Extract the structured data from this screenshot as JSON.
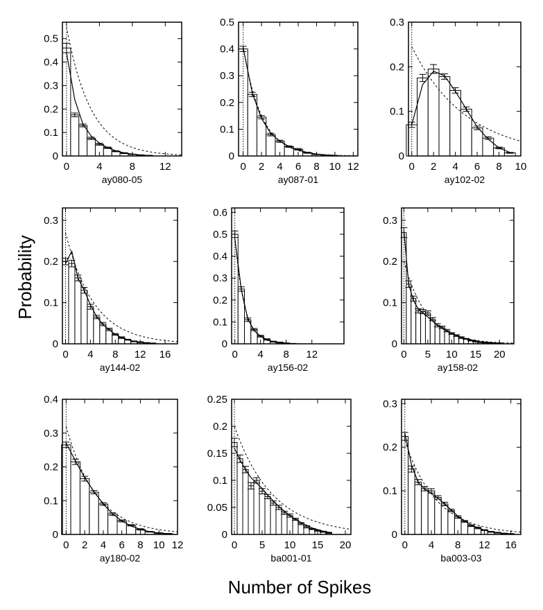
{
  "figure": {
    "ylabel": "Probability",
    "xlabel": "Number of Spikes"
  },
  "chart_data": [
    {
      "type": "bar",
      "title": "ay080-05",
      "xlim": [
        -0.5,
        14
      ],
      "ylim": [
        0,
        0.57
      ],
      "xticks": [
        0,
        4,
        8,
        12
      ],
      "yticks": [
        0,
        0.1,
        0.2,
        0.3,
        0.4,
        0.5
      ],
      "x": [
        0,
        1,
        2,
        3,
        4,
        5,
        6,
        7,
        8,
        9,
        10
      ],
      "values": [
        0.46,
        0.175,
        0.13,
        0.075,
        0.05,
        0.035,
        0.02,
        0.012,
        0.007,
        0.004,
        0.002
      ],
      "errors": [
        0.02,
        0.008,
        0.006,
        0.005,
        0.004,
        0.003,
        0.002,
        0.002,
        0.001,
        0.001,
        0.001
      ],
      "fit": [
        0.44,
        0.24,
        0.135,
        0.085,
        0.055,
        0.035,
        0.022,
        0.013,
        0.008,
        0.004,
        0.002
      ],
      "exp_start": 0.55,
      "exp_decay": 0.34
    },
    {
      "type": "bar",
      "title": "ay087-01",
      "xlim": [
        -0.5,
        12.5
      ],
      "ylim": [
        0,
        0.5
      ],
      "xticks": [
        0,
        2,
        4,
        6,
        8,
        10,
        12
      ],
      "yticks": [
        0,
        0.1,
        0.2,
        0.3,
        0.4,
        0.5
      ],
      "x": [
        0,
        1,
        2,
        3,
        4,
        5,
        6,
        7,
        8,
        9,
        10
      ],
      "values": [
        0.4,
        0.23,
        0.145,
        0.08,
        0.055,
        0.035,
        0.025,
        0.012,
        0.006,
        0.003,
        0.001
      ],
      "errors": [
        0.01,
        0.008,
        0.006,
        0.005,
        0.004,
        0.003,
        0.003,
        0.002,
        0.001,
        0.001,
        0.001
      ],
      "fit": [
        0.405,
        0.235,
        0.14,
        0.085,
        0.055,
        0.035,
        0.022,
        0.013,
        0.007,
        0.004,
        0.002
      ],
      "exp_start": 0.41,
      "exp_decay": 0.5
    },
    {
      "type": "bar",
      "title": "ay102-02",
      "xlim": [
        -0.3,
        10
      ],
      "ylim": [
        0,
        0.3
      ],
      "xticks": [
        0,
        2,
        4,
        6,
        8,
        10
      ],
      "yticks": [
        0,
        0.1,
        0.2,
        0.3
      ],
      "x": [
        0,
        1,
        2,
        3,
        4,
        5,
        6,
        7,
        8,
        9
      ],
      "values": [
        0.07,
        0.175,
        0.195,
        0.178,
        0.147,
        0.105,
        0.063,
        0.04,
        0.018,
        0.007
      ],
      "errors": [
        0.006,
        0.008,
        0.01,
        0.006,
        0.006,
        0.005,
        0.004,
        0.003,
        0.002,
        0.001
      ],
      "fit": [
        0.07,
        0.16,
        0.19,
        0.18,
        0.145,
        0.105,
        0.065,
        0.038,
        0.018,
        0.008
      ],
      "exp_start": 0.245,
      "exp_decay": 0.2
    },
    {
      "type": "bar",
      "title": "ay144-02",
      "xlim": [
        -0.5,
        18
      ],
      "ylim": [
        0,
        0.33
      ],
      "xticks": [
        0,
        4,
        8,
        12,
        16
      ],
      "yticks": [
        0,
        0.1,
        0.2,
        0.3
      ],
      "x": [
        0,
        1,
        2,
        3,
        4,
        5,
        6,
        7,
        8,
        9,
        10,
        11,
        12,
        13,
        14
      ],
      "values": [
        0.2,
        0.195,
        0.16,
        0.13,
        0.09,
        0.065,
        0.048,
        0.035,
        0.023,
        0.015,
        0.01,
        0.006,
        0.004,
        0.002,
        0.001
      ],
      "errors": [
        0.008,
        0.008,
        0.007,
        0.007,
        0.006,
        0.004,
        0.004,
        0.003,
        0.002,
        0.002,
        0.001,
        0.001,
        0.001,
        0.001,
        0.001
      ],
      "fit": [
        0.195,
        0.225,
        0.16,
        0.13,
        0.095,
        0.066,
        0.047,
        0.034,
        0.023,
        0.015,
        0.01,
        0.006,
        0.004,
        0.002,
        0.001
      ],
      "exp_start": 0.27,
      "exp_decay": 0.22
    },
    {
      "type": "bar",
      "title": "ay156-02",
      "xlim": [
        -0.5,
        17
      ],
      "ylim": [
        0,
        0.62
      ],
      "xticks": [
        0,
        4,
        8,
        12
      ],
      "yticks": [
        0,
        0.1,
        0.2,
        0.3,
        0.4,
        0.5,
        0.6
      ],
      "x": [
        0,
        1,
        2,
        3,
        4,
        5,
        6,
        7,
        8,
        9
      ],
      "values": [
        0.5,
        0.25,
        0.11,
        0.065,
        0.035,
        0.02,
        0.01,
        0.006,
        0.003,
        0.001
      ],
      "errors": [
        0.015,
        0.01,
        0.008,
        0.005,
        0.004,
        0.003,
        0.002,
        0.002,
        0.001,
        0.001
      ],
      "fit": [
        0.48,
        0.25,
        0.115,
        0.06,
        0.035,
        0.018,
        0.01,
        0.005,
        0.003,
        0.001
      ],
      "exp_start": 0.49,
      "exp_decay": 0.68
    },
    {
      "type": "bar",
      "title": "ay158-02",
      "xlim": [
        -0.5,
        23
      ],
      "ylim": [
        0,
        0.33
      ],
      "xticks": [
        0,
        5,
        10,
        15,
        20
      ],
      "yticks": [
        0,
        0.1,
        0.2,
        0.3
      ],
      "x": [
        0,
        1,
        2,
        3,
        4,
        5,
        6,
        7,
        8,
        9,
        10,
        11,
        12,
        13,
        14,
        15,
        16,
        17,
        18,
        19,
        20
      ],
      "values": [
        0.27,
        0.145,
        0.11,
        0.08,
        0.078,
        0.075,
        0.06,
        0.045,
        0.04,
        0.032,
        0.025,
        0.02,
        0.015,
        0.012,
        0.008,
        0.006,
        0.004,
        0.003,
        0.002,
        0.001,
        0.001
      ],
      "errors": [
        0.012,
        0.008,
        0.006,
        0.005,
        0.005,
        0.005,
        0.004,
        0.004,
        0.003,
        0.003,
        0.002,
        0.002,
        0.002,
        0.001,
        0.001,
        0.001,
        0.001,
        0.001,
        0.001,
        0.001,
        0.001
      ],
      "fit": [
        0.275,
        0.145,
        0.105,
        0.085,
        0.075,
        0.065,
        0.055,
        0.046,
        0.038,
        0.031,
        0.025,
        0.02,
        0.016,
        0.012,
        0.009,
        0.007,
        0.005,
        0.004,
        0.003,
        0.002,
        0.001
      ],
      "exp_start": 0.2,
      "exp_decay": 0.21
    },
    {
      "type": "bar",
      "title": "ay180-02",
      "xlim": [
        -0.4,
        12
      ],
      "ylim": [
        0,
        0.4
      ],
      "xticks": [
        0,
        2,
        4,
        6,
        8,
        10,
        12
      ],
      "yticks": [
        0,
        0.1,
        0.2,
        0.3,
        0.4
      ],
      "x": [
        0,
        1,
        2,
        3,
        4,
        5,
        6,
        7,
        8,
        9,
        10,
        11
      ],
      "values": [
        0.265,
        0.215,
        0.165,
        0.125,
        0.09,
        0.06,
        0.04,
        0.027,
        0.015,
        0.008,
        0.004,
        0.002
      ],
      "errors": [
        0.008,
        0.008,
        0.007,
        0.005,
        0.004,
        0.004,
        0.003,
        0.002,
        0.002,
        0.001,
        0.001,
        0.001
      ],
      "fit": [
        0.27,
        0.218,
        0.168,
        0.127,
        0.09,
        0.061,
        0.04,
        0.025,
        0.015,
        0.008,
        0.004,
        0.002
      ],
      "exp_start": 0.32,
      "exp_decay": 0.31
    },
    {
      "type": "bar",
      "title": "ba001-01",
      "xlim": [
        -0.5,
        21
      ],
      "ylim": [
        0,
        0.25
      ],
      "xticks": [
        0,
        5,
        10,
        15,
        20
      ],
      "yticks": [
        0,
        0.05,
        0.1,
        0.15,
        0.2,
        0.25
      ],
      "x": [
        0,
        1,
        2,
        3,
        4,
        5,
        6,
        7,
        8,
        9,
        10,
        11,
        12,
        13,
        14,
        15,
        16,
        17
      ],
      "values": [
        0.17,
        0.14,
        0.12,
        0.09,
        0.1,
        0.08,
        0.07,
        0.058,
        0.05,
        0.04,
        0.035,
        0.028,
        0.02,
        0.014,
        0.01,
        0.007,
        0.005,
        0.003
      ],
      "errors": [
        0.008,
        0.007,
        0.006,
        0.006,
        0.005,
        0.005,
        0.004,
        0.004,
        0.004,
        0.003,
        0.003,
        0.002,
        0.002,
        0.002,
        0.001,
        0.001,
        0.001,
        0.001
      ],
      "fit": [
        0.16,
        0.138,
        0.12,
        0.105,
        0.095,
        0.085,
        0.073,
        0.062,
        0.052,
        0.043,
        0.035,
        0.028,
        0.022,
        0.017,
        0.012,
        0.009,
        0.006,
        0.004
      ],
      "exp_start": 0.2,
      "exp_decay": 0.145
    },
    {
      "type": "bar",
      "title": "ba003-03",
      "xlim": [
        -0.5,
        17.5
      ],
      "ylim": [
        0,
        0.31
      ],
      "xticks": [
        0,
        4,
        8,
        12,
        16
      ],
      "yticks": [
        0,
        0.1,
        0.2,
        0.3
      ],
      "x": [
        0,
        1,
        2,
        3,
        4,
        5,
        6,
        7,
        8,
        9,
        10,
        11,
        12,
        13,
        14,
        15,
        16
      ],
      "values": [
        0.225,
        0.15,
        0.12,
        0.105,
        0.1,
        0.085,
        0.07,
        0.055,
        0.04,
        0.03,
        0.02,
        0.015,
        0.01,
        0.006,
        0.004,
        0.002,
        0.001
      ],
      "errors": [
        0.009,
        0.007,
        0.006,
        0.005,
        0.005,
        0.004,
        0.004,
        0.003,
        0.003,
        0.002,
        0.002,
        0.002,
        0.001,
        0.001,
        0.001,
        0.001,
        0.001
      ],
      "fit": [
        0.232,
        0.16,
        0.12,
        0.104,
        0.094,
        0.083,
        0.07,
        0.056,
        0.042,
        0.031,
        0.022,
        0.015,
        0.01,
        0.006,
        0.004,
        0.002,
        0.001
      ],
      "exp_start": 0.215,
      "exp_decay": 0.21
    }
  ]
}
